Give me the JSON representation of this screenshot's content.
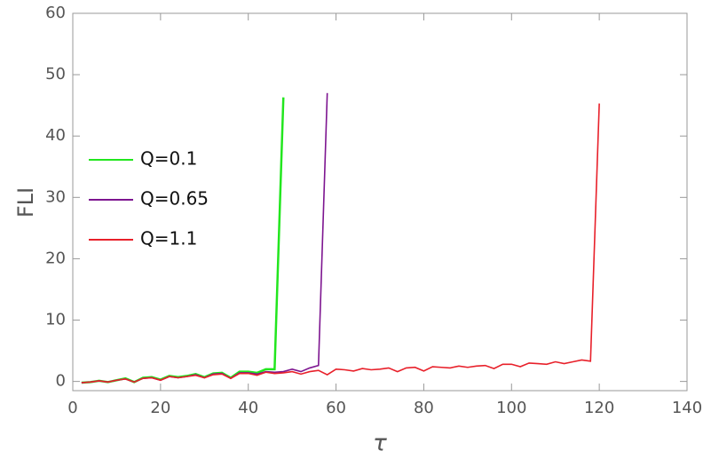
{
  "chart_data": {
    "type": "line",
    "xlabel": "τ",
    "ylabel": "FLI",
    "xlim": [
      0,
      140
    ],
    "ylim": [
      -1.5,
      60
    ],
    "xticks": [
      0,
      20,
      40,
      60,
      80,
      100,
      120,
      140
    ],
    "yticks": [
      0,
      10,
      20,
      30,
      40,
      50,
      60
    ],
    "legend": "left",
    "series": [
      {
        "name": "Q=0.1",
        "color": "#22e61e",
        "x": [
          2,
          4,
          6,
          8,
          10,
          12,
          14,
          16,
          18,
          20,
          22,
          24,
          26,
          28,
          30,
          32,
          34,
          36,
          38,
          40,
          42,
          44,
          46,
          48
        ],
        "values": [
          -0.2,
          -0.1,
          0.1,
          -0.1,
          0.2,
          0.5,
          -0.1,
          0.6,
          0.7,
          0.3,
          0.9,
          0.7,
          0.9,
          1.2,
          0.7,
          1.3,
          1.4,
          0.6,
          1.6,
          1.6,
          1.4,
          2.0,
          2.0,
          46.3
        ]
      },
      {
        "name": "Q=0.65",
        "color": "#7d1590",
        "x": [
          2,
          4,
          6,
          8,
          10,
          12,
          14,
          16,
          18,
          20,
          22,
          24,
          26,
          28,
          30,
          32,
          34,
          36,
          38,
          40,
          42,
          44,
          46,
          48,
          50,
          52,
          54,
          56,
          58
        ],
        "values": [
          -0.2,
          -0.1,
          0.1,
          -0.1,
          0.2,
          0.4,
          -0.1,
          0.5,
          0.6,
          0.2,
          0.8,
          0.6,
          0.8,
          1.1,
          0.6,
          1.2,
          1.3,
          0.5,
          1.4,
          1.4,
          1.2,
          1.6,
          1.5,
          1.6,
          2.0,
          1.6,
          2.2,
          2.6,
          47.0
        ]
      },
      {
        "name": "Q=1.1",
        "color": "#e8202a",
        "x": [
          2,
          4,
          6,
          8,
          10,
          12,
          14,
          16,
          18,
          20,
          22,
          24,
          26,
          28,
          30,
          32,
          34,
          36,
          38,
          40,
          42,
          44,
          46,
          48,
          50,
          52,
          54,
          56,
          58,
          60,
          62,
          64,
          66,
          68,
          70,
          72,
          74,
          76,
          78,
          80,
          82,
          84,
          86,
          88,
          90,
          92,
          94,
          96,
          98,
          100,
          102,
          104,
          106,
          108,
          110,
          112,
          114,
          116,
          118,
          120
        ],
        "values": [
          -0.2,
          -0.1,
          0.1,
          -0.1,
          0.2,
          0.4,
          -0.1,
          0.5,
          0.6,
          0.2,
          0.8,
          0.6,
          0.8,
          1.0,
          0.6,
          1.1,
          1.2,
          0.5,
          1.3,
          1.3,
          1.0,
          1.5,
          1.3,
          1.4,
          1.6,
          1.2,
          1.6,
          1.8,
          1.1,
          2.0,
          1.9,
          1.7,
          2.1,
          1.9,
          2.0,
          2.2,
          1.6,
          2.2,
          2.3,
          1.7,
          2.4,
          2.3,
          2.2,
          2.5,
          2.3,
          2.5,
          2.6,
          2.1,
          2.8,
          2.8,
          2.4,
          3.0,
          2.9,
          2.8,
          3.2,
          2.9,
          3.2,
          3.5,
          3.3,
          45.3
        ]
      }
    ]
  }
}
